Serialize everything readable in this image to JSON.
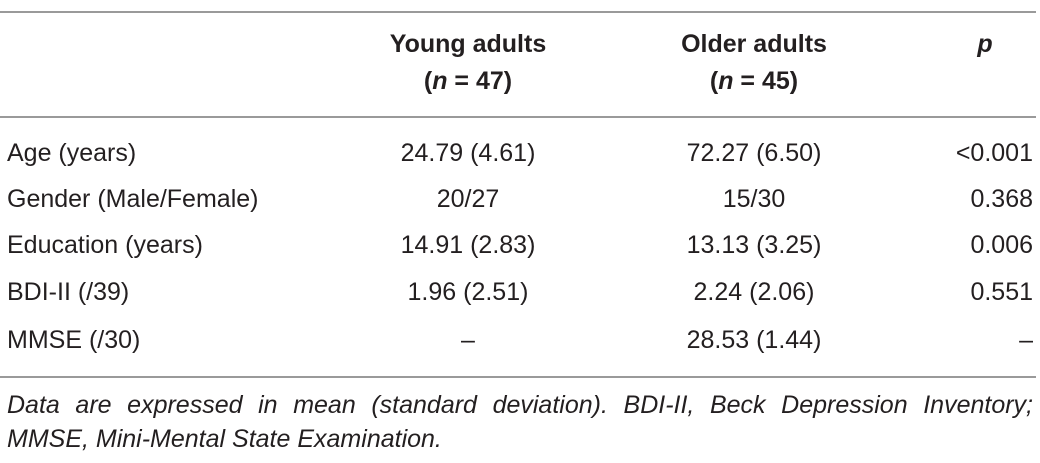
{
  "table": {
    "headers": {
      "label": "",
      "young_title": "Young adults",
      "young_n": "(n = 47)",
      "older_title": "Older adults",
      "older_n": "(n = 45)",
      "p": "p"
    },
    "rows": [
      {
        "label": "Age (years)",
        "young": "24.79 (4.61)",
        "older": "72.27 (6.50)",
        "p": "<0.001"
      },
      {
        "label": "Gender (Male/Female)",
        "young": "20/27",
        "older": "15/30",
        "p": "0.368"
      },
      {
        "label": "Education (years)",
        "young": "14.91 (2.83)",
        "older": "13.13 (3.25)",
        "p": "0.006"
      },
      {
        "label": "BDI-II (/39)",
        "young": "1.96 (2.51)",
        "older": "2.24 (2.06)",
        "p": "0.551"
      },
      {
        "label": "MMSE (/30)",
        "young": "–",
        "older": "28.53 (1.44)",
        "p": "–"
      }
    ],
    "note": "Data are expressed in mean (standard deviation). BDI-II, Beck Depression Inventory; MMSE, Mini-Mental State Examination."
  }
}
